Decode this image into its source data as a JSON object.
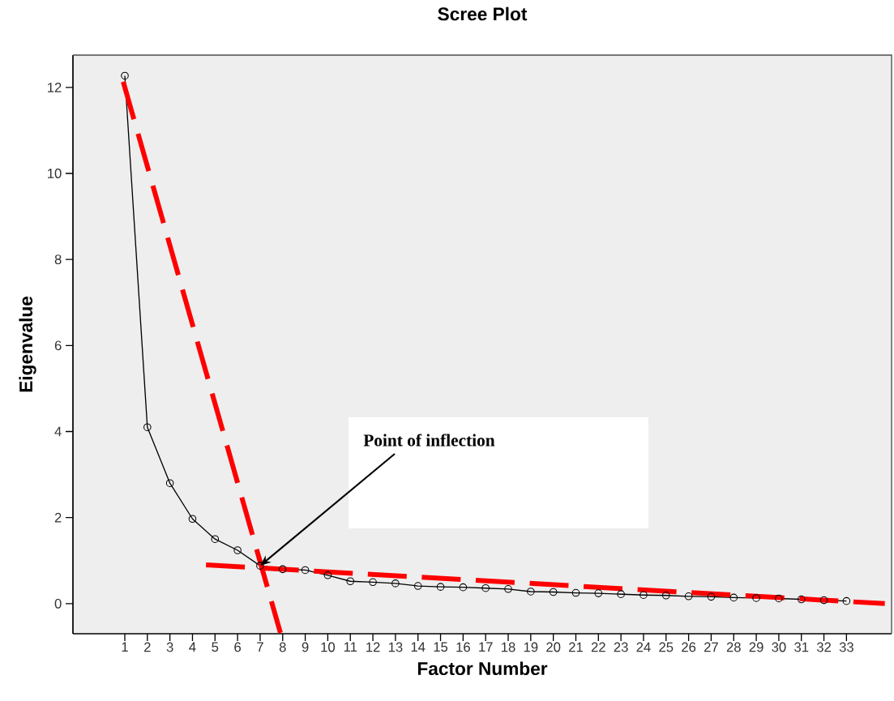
{
  "chart_data": {
    "type": "line",
    "title": "Scree Plot",
    "xlabel": "Factor Number",
    "ylabel": "Eigenvalue",
    "x": [
      1,
      2,
      3,
      4,
      5,
      6,
      7,
      8,
      9,
      10,
      11,
      12,
      13,
      14,
      15,
      16,
      17,
      18,
      19,
      20,
      21,
      22,
      23,
      24,
      25,
      26,
      27,
      28,
      29,
      30,
      31,
      32,
      33
    ],
    "series": [
      {
        "color": "#000000",
        "marker": "circle",
        "line_style": "solid",
        "values": [
          12.27,
          4.1,
          2.8,
          1.97,
          1.5,
          1.24,
          0.88,
          0.8,
          0.78,
          0.66,
          0.52,
          0.5,
          0.47,
          0.41,
          0.39,
          0.38,
          0.36,
          0.34,
          0.28,
          0.27,
          0.25,
          0.24,
          0.22,
          0.2,
          0.19,
          0.17,
          0.16,
          0.14,
          0.13,
          0.12,
          0.1,
          0.08,
          0.06
        ]
      },
      {
        "type": "line",
        "color": "#ff0000",
        "marker": "none",
        "line_style": "dashed",
        "x": [
          0.93,
          7.9
        ],
        "values": [
          12.13,
          -0.68
        ]
      },
      {
        "type": "line",
        "color": "#ff0000",
        "marker": "none",
        "line_style": "dashed",
        "x": [
          4.6,
          34.7
        ],
        "values": [
          0.9,
          0.0
        ]
      }
    ],
    "xlim": [
      -1.3,
      35
    ],
    "ylim": [
      -0.7,
      12.75
    ],
    "xticks": [
      1,
      2,
      3,
      4,
      5,
      6,
      7,
      8,
      9,
      10,
      11,
      12,
      13,
      14,
      15,
      16,
      17,
      18,
      19,
      20,
      21,
      22,
      23,
      24,
      25,
      26,
      27,
      28,
      29,
      30,
      31,
      32,
      33
    ],
    "yticks": [
      0,
      2,
      4,
      6,
      8,
      10,
      12
    ],
    "grid": false,
    "annotations": [
      {
        "text": "Point of inflection",
        "x": 7,
        "y": 0.88
      }
    ]
  }
}
